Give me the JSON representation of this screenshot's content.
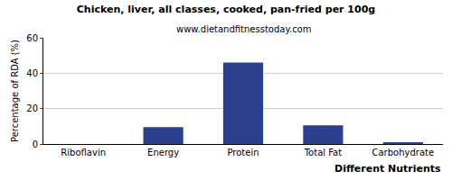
{
  "chart_data": {
    "type": "bar",
    "title": "Chicken, liver, all classes, cooked, pan-fried per 100g",
    "subtitle": "www.dietandfitnesstoday.com",
    "x_label": "Different Nutrients",
    "y_label": "Percentage of RDA (%)",
    "categories": [
      "Riboflavin",
      "Energy",
      "Protein",
      "Total Fat",
      "Carbohydrate"
    ],
    "values": [
      0,
      9.5,
      46,
      10.5,
      1
    ],
    "color": "#2b3f8f",
    "ylim": [
      0,
      60
    ],
    "yticks": [
      0,
      20,
      40,
      60
    ],
    "grid": true
  }
}
